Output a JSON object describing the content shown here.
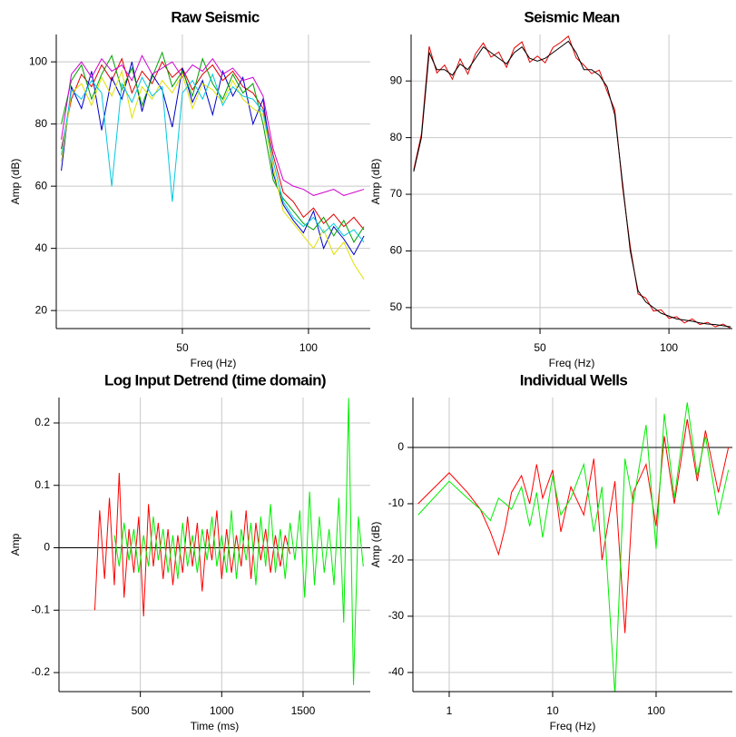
{
  "chart_data": [
    {
      "type": "line",
      "title": "Raw Seismic",
      "xlabel": "Freq (Hz)",
      "ylabel": "Amp (dB)",
      "x": [
        2,
        6,
        10,
        14,
        18,
        22,
        26,
        30,
        34,
        38,
        42,
        46,
        50,
        54,
        58,
        62,
        66,
        70,
        74,
        78,
        82,
        86,
        90,
        94,
        98,
        102,
        106,
        110,
        114,
        118,
        122
      ],
      "series": [
        {
          "color": "#e00000",
          "values": [
            72,
            88,
            96,
            92,
            99,
            94,
            101,
            90,
            97,
            93,
            100,
            95,
            98,
            91,
            96,
            99,
            94,
            97,
            92,
            90,
            85,
            70,
            58,
            55,
            50,
            53,
            48,
            51,
            47,
            50,
            46
          ]
        },
        {
          "color": "#0000c8",
          "values": [
            65,
            92,
            85,
            97,
            78,
            95,
            88,
            100,
            84,
            96,
            91,
            79,
            98,
            87,
            94,
            83,
            97,
            89,
            95,
            80,
            88,
            64,
            54,
            49,
            45,
            52,
            40,
            47,
            43,
            38,
            44
          ]
        },
        {
          "color": "#00a000",
          "values": [
            80,
            94,
            99,
            88,
            96,
            102,
            91,
            98,
            86,
            95,
            103,
            92,
            97,
            89,
            101,
            93,
            88,
            96,
            90,
            93,
            80,
            62,
            56,
            52,
            48,
            46,
            50,
            44,
            49,
            42,
            47
          ]
        },
        {
          "color": "#d000d0",
          "values": [
            75,
            96,
            100,
            95,
            101,
            97,
            99,
            94,
            102,
            96,
            98,
            100,
            95,
            99,
            97,
            101,
            96,
            98,
            94,
            95,
            89,
            72,
            62,
            60,
            59,
            57,
            58,
            59,
            57,
            58,
            59
          ]
        },
        {
          "color": "#e0e000",
          "values": [
            68,
            90,
            93,
            86,
            95,
            89,
            97,
            82,
            92,
            88,
            94,
            90,
            96,
            85,
            93,
            91,
            87,
            94,
            88,
            85,
            83,
            66,
            52,
            48,
            44,
            40,
            46,
            38,
            42,
            35,
            30
          ]
        },
        {
          "color": "#00c8e0",
          "values": [
            70,
            91,
            88,
            94,
            90,
            60,
            93,
            87,
            95,
            89,
            92,
            55,
            90,
            94,
            88,
            96,
            86,
            92,
            89,
            88,
            84,
            68,
            55,
            50,
            47,
            50,
            45,
            48,
            44,
            46,
            42
          ]
        }
      ],
      "xlim": [
        0,
        124.5
      ],
      "ylim": [
        14.2,
        108.8
      ],
      "xticks": [
        50,
        100
      ],
      "yticks": [
        20,
        40,
        60,
        80,
        100
      ],
      "grid": true,
      "xlog": false,
      "zero_line": false
    },
    {
      "type": "line",
      "title": "Seismic Mean",
      "xlabel": "Freq (Hz)",
      "ylabel": "Amp (dB)",
      "x": [
        1,
        4,
        7,
        10,
        13,
        16,
        19,
        22,
        25,
        28,
        31,
        34,
        37,
        40,
        43,
        46,
        49,
        52,
        55,
        58,
        61,
        64,
        67,
        70,
        73,
        76,
        79,
        82,
        85,
        88,
        91,
        94,
        97,
        100,
        103,
        106,
        109,
        112,
        115,
        118,
        121,
        124
      ],
      "series": [
        {
          "color": "#e00000",
          "values": [
            74.3,
            80.6,
            96.1,
            91.4,
            92.8,
            90.3,
            93.9,
            91.2,
            94.8,
            96.7,
            94.2,
            95.1,
            92.4,
            95.8,
            96.9,
            93.3,
            94.4,
            93.2,
            95.9,
            96.8,
            97.9,
            94.1,
            92.8,
            91.3,
            91.9,
            88.2,
            84.9,
            71.3,
            60.8,
            52.4,
            51.7,
            49.4,
            49.6,
            48.1,
            48.4,
            47.3,
            48.0,
            47.0,
            47.4,
            46.6,
            47.1,
            46.3
          ]
        },
        {
          "color": "#000000",
          "values": [
            74,
            80,
            95,
            92,
            92,
            91,
            93,
            92,
            94,
            96,
            95,
            94,
            93,
            95,
            96,
            94,
            93.5,
            94,
            95,
            96,
            97,
            95,
            92,
            92,
            91,
            89,
            84,
            72,
            60,
            53,
            51,
            50,
            49,
            48.5,
            48,
            47.8,
            47.6,
            47.3,
            47.1,
            47,
            46.8,
            46.6
          ]
        }
      ],
      "xlim": [
        0,
        124.6
      ],
      "ylim": [
        46.3,
        98.2
      ],
      "xticks": [
        50,
        100
      ],
      "yticks": [
        50,
        60,
        70,
        80,
        90
      ],
      "grid": true,
      "xlog": false,
      "zero_line": false
    },
    {
      "type": "line",
      "title": "Log Input Detrend (time domain)",
      "xlabel": "Time (ms)",
      "ylabel": "Amp",
      "x": [
        220,
        250,
        280,
        310,
        340,
        370,
        400,
        430,
        460,
        490,
        520,
        550,
        580,
        610,
        640,
        670,
        700,
        730,
        760,
        790,
        820,
        850,
        880,
        910,
        940,
        970,
        1000,
        1030,
        1060,
        1090,
        1120,
        1150,
        1180,
        1210,
        1240,
        1270,
        1300,
        1330,
        1360,
        1390,
        1420,
        1450,
        1480,
        1510,
        1540,
        1570,
        1600,
        1630,
        1660,
        1690,
        1720,
        1750,
        1780,
        1810,
        1840,
        1870
      ],
      "series": [
        {
          "color": "#ff0000",
          "values": [
            -0.1,
            0.06,
            -0.05,
            0.08,
            -0.06,
            0.12,
            -0.08,
            0.03,
            -0.04,
            0.05,
            -0.11,
            0.07,
            -0.03,
            0.04,
            -0.05,
            0.03,
            -0.06,
            0.02,
            -0.04,
            0.05,
            -0.03,
            0.04,
            -0.07,
            0.03,
            -0.02,
            0.06,
            -0.05,
            0.03,
            -0.04,
            0.02,
            -0.03,
            0.06,
            -0.05,
            0.04,
            -0.02,
            0.03,
            -0.04,
            0.02,
            -0.03,
            0.02,
            -0.01,
            null,
            null,
            null,
            null,
            null,
            null,
            null,
            null,
            null,
            null,
            null,
            null,
            null,
            null,
            null
          ]
        },
        {
          "color": "#00ee00",
          "values": [
            null,
            null,
            null,
            null,
            0.02,
            -0.03,
            0.04,
            -0.02,
            0.03,
            -0.04,
            0.02,
            -0.03,
            0.05,
            -0.02,
            0.03,
            -0.04,
            0.02,
            -0.05,
            0.04,
            -0.03,
            0.02,
            -0.04,
            0.03,
            -0.02,
            0.05,
            -0.03,
            0.02,
            -0.04,
            0.06,
            -0.05,
            0.03,
            -0.02,
            0.04,
            -0.06,
            0.05,
            -0.03,
            0.07,
            -0.04,
            0.03,
            -0.05,
            0.04,
            -0.02,
            0.06,
            -0.08,
            0.09,
            -0.06,
            0.05,
            -0.04,
            0.03,
            -0.06,
            0.08,
            -0.12,
            0.24,
            -0.22,
            0.05,
            -0.03
          ]
        }
      ],
      "xlim": [
        0,
        1913
      ],
      "ylim": [
        -0.2305,
        0.2407
      ],
      "xticks": [
        500,
        1000,
        1500
      ],
      "yticks": [
        -0.2,
        -0.1,
        0,
        0.1,
        0.2
      ],
      "grid": true,
      "xlog": false,
      "zero_line": true
    },
    {
      "type": "line",
      "title": "Individual Wells",
      "xlabel": "Freq (Hz)",
      "ylabel": "Amp (dB)",
      "x": [
        0.5,
        1,
        1.5,
        2,
        2.5,
        3,
        3.5,
        4,
        5,
        6,
        7,
        8,
        10,
        12,
        15,
        20,
        25,
        30,
        40,
        50,
        60,
        80,
        100,
        120,
        150,
        200,
        250,
        300,
        400,
        500
      ],
      "series": [
        {
          "color": "#ff0000",
          "values": [
            -10,
            -4.5,
            -8,
            -11,
            -15,
            -19,
            -14,
            -8,
            -5,
            -10,
            -3,
            -9,
            -4,
            -15,
            -7,
            -12,
            -2,
            -20,
            -6,
            -33,
            -8,
            -3,
            -14,
            2,
            -10,
            5,
            -6,
            3,
            -8,
            0
          ]
        },
        {
          "color": "#00ee00",
          "values": [
            -12,
            -6,
            -9,
            -11,
            -13,
            -9,
            -10,
            -11,
            -7,
            -14,
            -8,
            -16,
            -5,
            -12,
            -9,
            -3,
            -15,
            -7,
            -44,
            -2,
            -10,
            4,
            -18,
            6,
            -9,
            8,
            -5,
            2,
            -12,
            -4
          ]
        }
      ],
      "xlim": [
        0.446,
        546
      ],
      "ylim": [
        -43.4,
        8.87
      ],
      "xticks": [
        1,
        10,
        100
      ],
      "yticks": [
        0,
        -10,
        -20,
        -30,
        -40
      ],
      "grid": true,
      "xlog": true,
      "zero_line": true
    }
  ]
}
